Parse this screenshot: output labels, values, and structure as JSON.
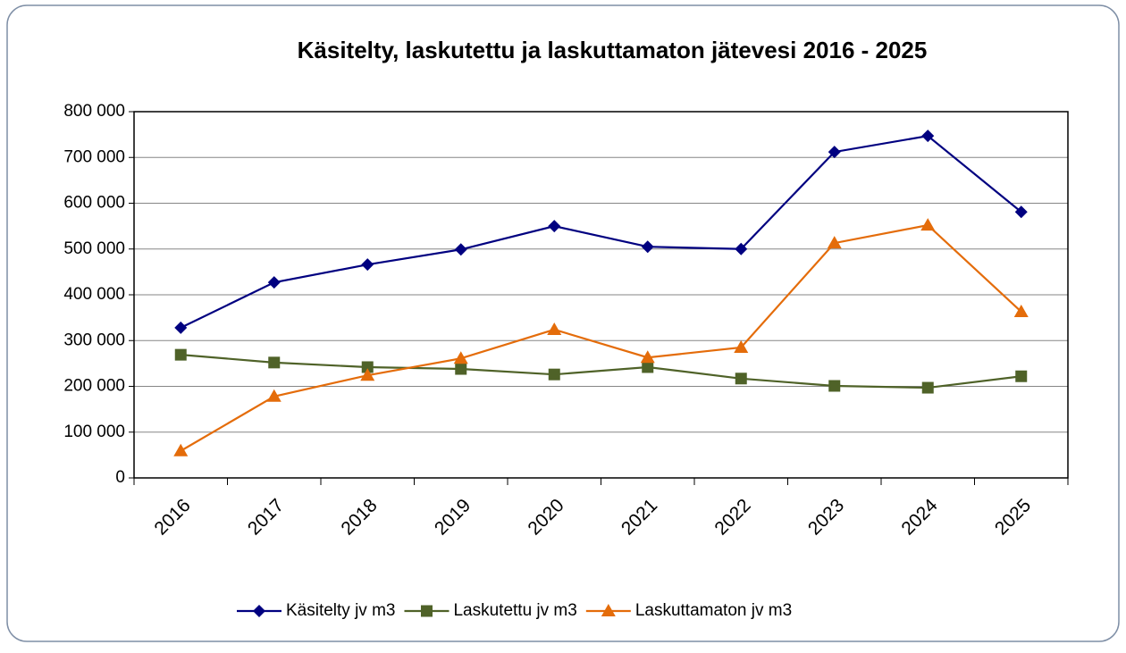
{
  "chart_data": {
    "type": "line",
    "title": "Käsitelty, laskutettu ja laskuttamaton jätevesi 2016 - 2025",
    "categories": [
      "2016",
      "2017",
      "2018",
      "2019",
      "2020",
      "2021",
      "2022",
      "2023",
      "2024",
      "2025"
    ],
    "series": [
      {
        "name": "Käsitelty jv m3",
        "color": "#000080",
        "marker": "diamond",
        "values": [
          328000,
          427000,
          466000,
          499000,
          550000,
          505000,
          500000,
          712000,
          747000,
          581000
        ]
      },
      {
        "name": "Laskutettu jv m3",
        "color": "#4f6228",
        "marker": "square",
        "values": [
          269000,
          252000,
          242000,
          238000,
          226000,
          242000,
          217000,
          201000,
          197000,
          222000
        ]
      },
      {
        "name": "Laskuttamaton jv m3",
        "color": "#e46c0a",
        "marker": "triangle",
        "values": [
          59000,
          178000,
          224000,
          261000,
          324000,
          263000,
          285000,
          513000,
          552000,
          363000
        ]
      }
    ],
    "ylim": [
      0,
      800000
    ],
    "yticks": [
      0,
      {
        "value": 100000,
        "label": "100 000"
      },
      {
        "value": 200000,
        "label": "200 000"
      },
      {
        "value": 300000,
        "label": "300 000"
      },
      {
        "value": 400000,
        "label": "400 000"
      },
      {
        "value": 500000,
        "label": "500 000"
      },
      {
        "value": 600000,
        "label": "600 000"
      },
      {
        "value": 700000,
        "label": "700 000"
      },
      {
        "value": 800000,
        "label": "800 000"
      }
    ],
    "grid": true,
    "legend": "bottom"
  }
}
